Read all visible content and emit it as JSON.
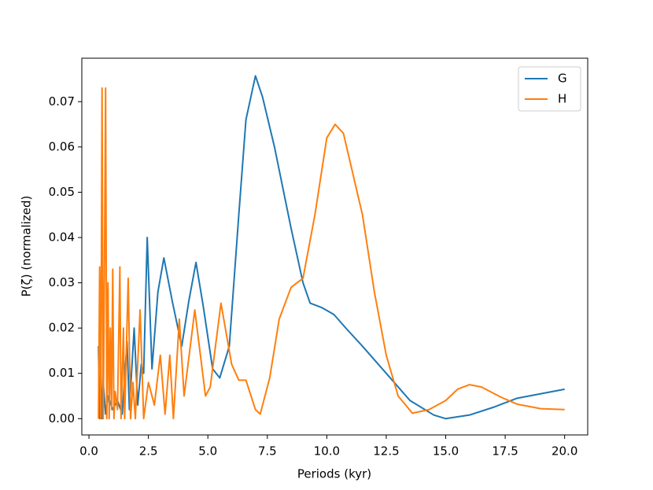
{
  "chart_data": {
    "type": "line",
    "xlabel": "Periods (kyr)",
    "ylabel": "P(ζ) (normalized)",
    "xlim": [
      -0.3,
      20.97
    ],
    "ylim": [
      -0.0036,
      0.0796
    ],
    "xticks": [
      {
        "value": 0,
        "label": "0.0"
      },
      {
        "value": 2.5,
        "label": "2.5"
      },
      {
        "value": 5,
        "label": "5.0"
      },
      {
        "value": 7.5,
        "label": "7.5"
      },
      {
        "value": 10,
        "label": "10.0"
      },
      {
        "value": 12.5,
        "label": "12.5"
      },
      {
        "value": 15,
        "label": "15.0"
      },
      {
        "value": 17.5,
        "label": "17.5"
      },
      {
        "value": 20,
        "label": "20.0"
      }
    ],
    "yticks": [
      {
        "value": 0,
        "label": "0.00"
      },
      {
        "value": 0.01,
        "label": "0.01"
      },
      {
        "value": 0.02,
        "label": "0.02"
      },
      {
        "value": 0.03,
        "label": "0.03"
      },
      {
        "value": 0.04,
        "label": "0.04"
      },
      {
        "value": 0.05,
        "label": "0.05"
      },
      {
        "value": 0.06,
        "label": "0.06"
      },
      {
        "value": 0.07,
        "label": "0.07"
      }
    ],
    "legend": "upper right",
    "series": [
      {
        "name": "G",
        "color": "#1f77b4",
        "x": [
          0.4,
          0.45,
          0.5,
          0.55,
          0.6,
          0.7,
          0.8,
          1.0,
          1.2,
          1.4,
          1.6,
          1.7,
          1.9,
          2.05,
          2.2,
          2.3,
          2.45,
          2.65,
          2.9,
          3.15,
          3.5,
          3.9,
          4.2,
          4.5,
          4.8,
          5.2,
          5.5,
          5.9,
          6.3,
          6.6,
          7.0,
          7.3,
          7.8,
          8.5,
          9.0,
          9.3,
          9.8,
          10.3,
          10.8,
          11.5,
          12.5,
          13.5,
          14.5,
          15.0,
          16.0,
          17.0,
          18.0,
          19.0,
          20.0
        ],
        "values": [
          0.016,
          0.0,
          0.012,
          0.0,
          0.008,
          0.001,
          0.005,
          0.002,
          0.004,
          0.001,
          0.017,
          0.002,
          0.02,
          0.003,
          0.012,
          0.01,
          0.04,
          0.011,
          0.028,
          0.0355,
          0.026,
          0.016,
          0.026,
          0.0345,
          0.025,
          0.011,
          0.009,
          0.016,
          0.045,
          0.066,
          0.0757,
          0.071,
          0.06,
          0.042,
          0.03,
          0.0255,
          0.0245,
          0.023,
          0.02,
          0.016,
          0.01,
          0.004,
          0.0008,
          0.0,
          0.0008,
          0.0025,
          0.0045,
          0.0055,
          0.0065
        ]
      },
      {
        "name": "H",
        "color": "#ff7f0e",
        "x": [
          0.4,
          0.45,
          0.5,
          0.55,
          0.6,
          0.65,
          0.7,
          0.75,
          0.8,
          0.85,
          0.9,
          0.95,
          1.0,
          1.05,
          1.1,
          1.2,
          1.3,
          1.35,
          1.45,
          1.5,
          1.65,
          1.75,
          1.85,
          1.95,
          2.15,
          2.3,
          2.5,
          2.75,
          3.0,
          3.2,
          3.4,
          3.55,
          3.8,
          4.0,
          4.45,
          4.9,
          5.1,
          5.55,
          6.0,
          6.3,
          6.6,
          7.0,
          7.2,
          7.6,
          8.0,
          8.5,
          9.0,
          9.5,
          10.0,
          10.35,
          10.7,
          11.5,
          12.0,
          12.5,
          13.0,
          13.6,
          14.3,
          15.0,
          15.5,
          16.0,
          16.5,
          17.3,
          18.0,
          19.0,
          20.0
        ],
        "values": [
          0.0,
          0.0335,
          0.0,
          0.073,
          0.0,
          0.031,
          0.073,
          0.0,
          0.03,
          0.0,
          0.02,
          0.002,
          0.033,
          0.0,
          0.006,
          0.002,
          0.0335,
          0.0,
          0.02,
          0.0,
          0.031,
          0.0,
          0.008,
          0.0,
          0.024,
          0.0,
          0.008,
          0.003,
          0.014,
          0.001,
          0.014,
          0.0,
          0.022,
          0.005,
          0.024,
          0.005,
          0.007,
          0.0255,
          0.012,
          0.0085,
          0.0085,
          0.002,
          0.001,
          0.009,
          0.022,
          0.029,
          0.031,
          0.045,
          0.062,
          0.065,
          0.063,
          0.045,
          0.028,
          0.014,
          0.005,
          0.0012,
          0.002,
          0.004,
          0.0065,
          0.0075,
          0.007,
          0.0048,
          0.0032,
          0.0022,
          0.002
        ]
      }
    ]
  }
}
